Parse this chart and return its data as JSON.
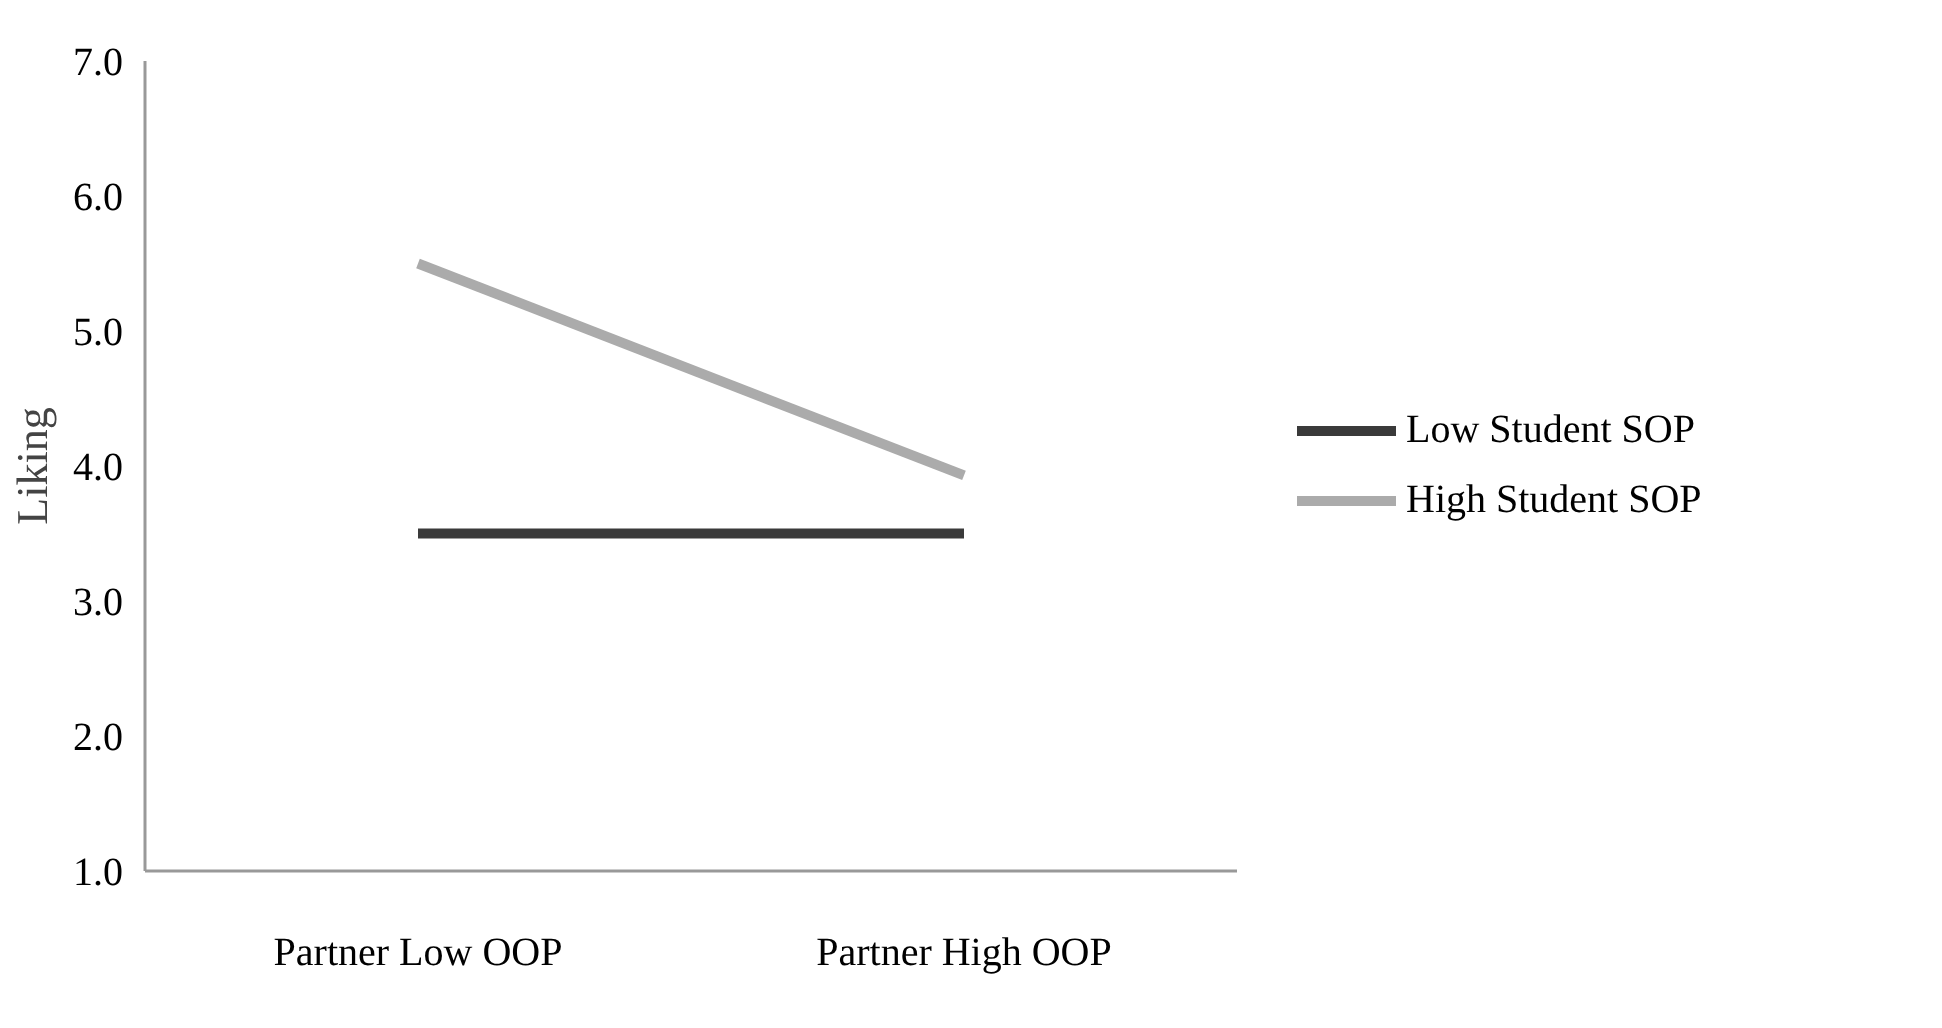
{
  "chart_data": {
    "type": "line",
    "ylabel": "Liking",
    "categories": [
      "Partner Low OOP",
      "Partner High OOP"
    ],
    "series": [
      {
        "name": "Low Student SOP",
        "color": "#3a3a3a",
        "values": [
          3.5,
          3.5
        ]
      },
      {
        "name": "High Student SOP",
        "color": "#ababab",
        "values": [
          5.5,
          3.93
        ]
      }
    ],
    "ylim": [
      1.0,
      7.0
    ],
    "yticks": [
      {
        "value": 1,
        "label": "1.0"
      },
      {
        "value": 2,
        "label": "2.0"
      },
      {
        "value": 3,
        "label": "3.0"
      },
      {
        "value": 4,
        "label": "4.0"
      },
      {
        "value": 5,
        "label": "5.0"
      },
      {
        "value": 6,
        "label": "6.0"
      },
      {
        "value": 7,
        "label": "7.0"
      }
    ],
    "grid": false,
    "legend": "right",
    "marker": "none",
    "line_style": "solid"
  }
}
